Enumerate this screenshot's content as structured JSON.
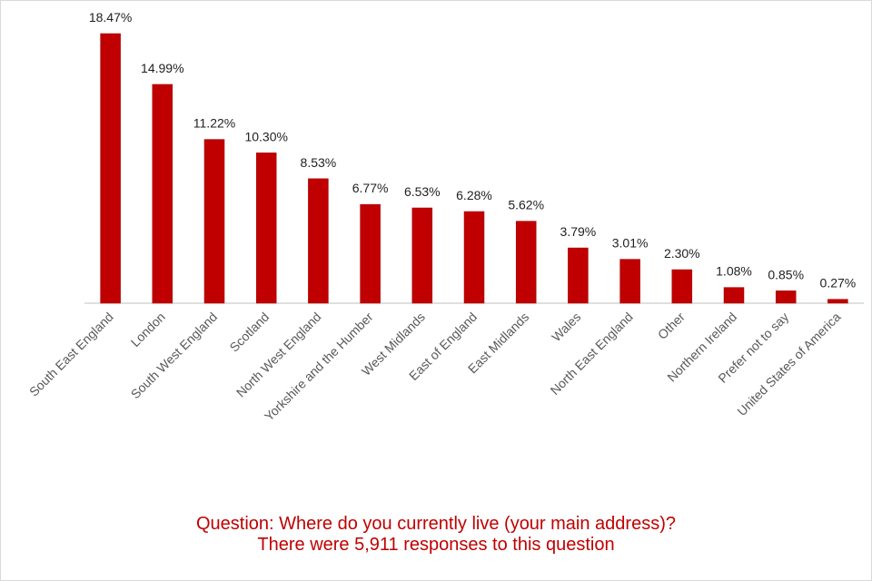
{
  "chart_data": {
    "type": "bar",
    "categories": [
      "South East England",
      "London",
      "South West England",
      "Scotland",
      "North West England",
      "Yorkshire and the Humber",
      "West Midlands",
      "East of England",
      "East Midlands",
      "Wales",
      "North East England",
      "Other",
      "Northern Ireland",
      "Prefer not to say",
      "United States of America"
    ],
    "values": [
      18.47,
      14.99,
      11.22,
      10.3,
      8.53,
      6.77,
      6.53,
      6.28,
      5.62,
      3.79,
      3.01,
      2.3,
      1.08,
      0.85,
      0.27
    ],
    "data_labels": [
      "18.47%",
      "14.99%",
      "11.22%",
      "10.30%",
      "8.53%",
      "6.77%",
      "6.53%",
      "6.28%",
      "5.62%",
      "3.79%",
      "3.01%",
      "2.30%",
      "1.08%",
      "0.85%",
      "0.27%"
    ],
    "ylim": [
      0,
      18.47
    ],
    "grid": false,
    "legend": "none",
    "bar_color": "#c00000"
  },
  "caption": {
    "line1": "Question: Where do you currently live (your main address)?",
    "line2": "There were 5,911 responses to this question"
  }
}
